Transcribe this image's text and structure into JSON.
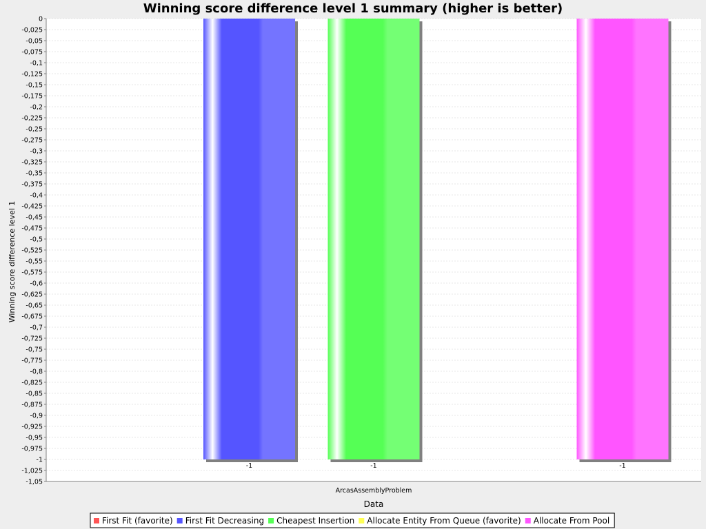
{
  "chart_data": {
    "type": "bar",
    "title": "Winning score difference level 1 summary (higher is better)",
    "xlabel": "Data",
    "ylabel": "Winning score difference level 1",
    "categories": [
      "ArcasAssemblyProblem"
    ],
    "ylim": [
      -1.05,
      0
    ],
    "ytick_step": 0.025,
    "grid": true,
    "legend_position": "bottom",
    "series": [
      {
        "name": "First Fit (favorite)",
        "color": "#ff5555",
        "values": [
          null
        ],
        "label": ""
      },
      {
        "name": "First Fit Decreasing",
        "color": "#5555ff",
        "values": [
          -1
        ],
        "label": "-1"
      },
      {
        "name": "Cheapest Insertion",
        "color": "#55ff55",
        "values": [
          -1
        ],
        "label": "-1"
      },
      {
        "name": "Allocate Entity From Queue (favorite)",
        "color": "#ffff55",
        "values": [
          null
        ],
        "label": ""
      },
      {
        "name": "Allocate From Pool",
        "color": "#ff55ff",
        "values": [
          -1
        ],
        "label": "-1"
      }
    ]
  }
}
